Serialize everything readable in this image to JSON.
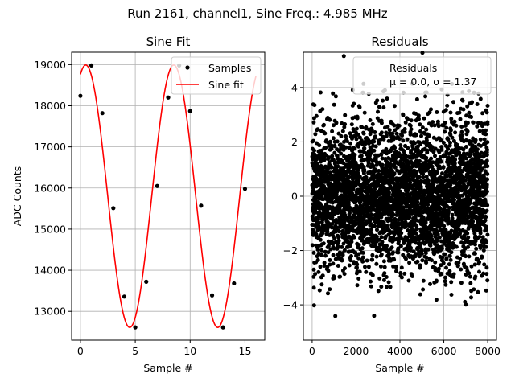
{
  "figure": {
    "suptitle": "Run 2161, channel1, Sine Freq.: 4.985 MHz"
  },
  "chart_data": [
    {
      "type": "line",
      "title": "Sine Fit",
      "xlabel": "Sample #",
      "ylabel": "ADC Counts",
      "xlim": [
        -0.8,
        16.8
      ],
      "ylim": [
        12300,
        19300
      ],
      "grid": true,
      "xticks": [
        0,
        5,
        10,
        15
      ],
      "yticks": [
        13000,
        14000,
        15000,
        16000,
        17000,
        18000,
        19000
      ],
      "legend": {
        "location": "top-right",
        "samples_label": "Samples",
        "fit_label": "Sine fit"
      },
      "samples": {
        "name": "Samples",
        "x": [
          0,
          1,
          2,
          3,
          4,
          5,
          6,
          7,
          8,
          9,
          10,
          11,
          12,
          13,
          14,
          15
        ],
        "y": [
          18240,
          18980,
          17820,
          15510,
          13360,
          12610,
          13720,
          16050,
          18200,
          18980,
          17870,
          15570,
          13390,
          12610,
          13680,
          15980
        ]
      },
      "fit": {
        "name": "Sine fit",
        "offset": 15800,
        "amplitude": 3190,
        "period_samples": 8.02,
        "phase": 1.19,
        "x_range": [
          0,
          16
        ]
      }
    },
    {
      "type": "scatter",
      "title": "Residuals",
      "xlabel": "Sample #",
      "ylabel": "",
      "xlim": [
        -400,
        8400
      ],
      "ylim": [
        -5.3,
        5.3
      ],
      "grid": true,
      "xticks": [
        0,
        2000,
        4000,
        6000,
        8000
      ],
      "yticks": [
        -4,
        -2,
        0,
        2,
        4
      ],
      "n_points": 8000,
      "mean": 0.0,
      "sigma": 1.37,
      "legend": {
        "location": "top-right",
        "label": "Residuals",
        "stats_text": "μ = 0.0, σ = 1.37"
      }
    }
  ]
}
